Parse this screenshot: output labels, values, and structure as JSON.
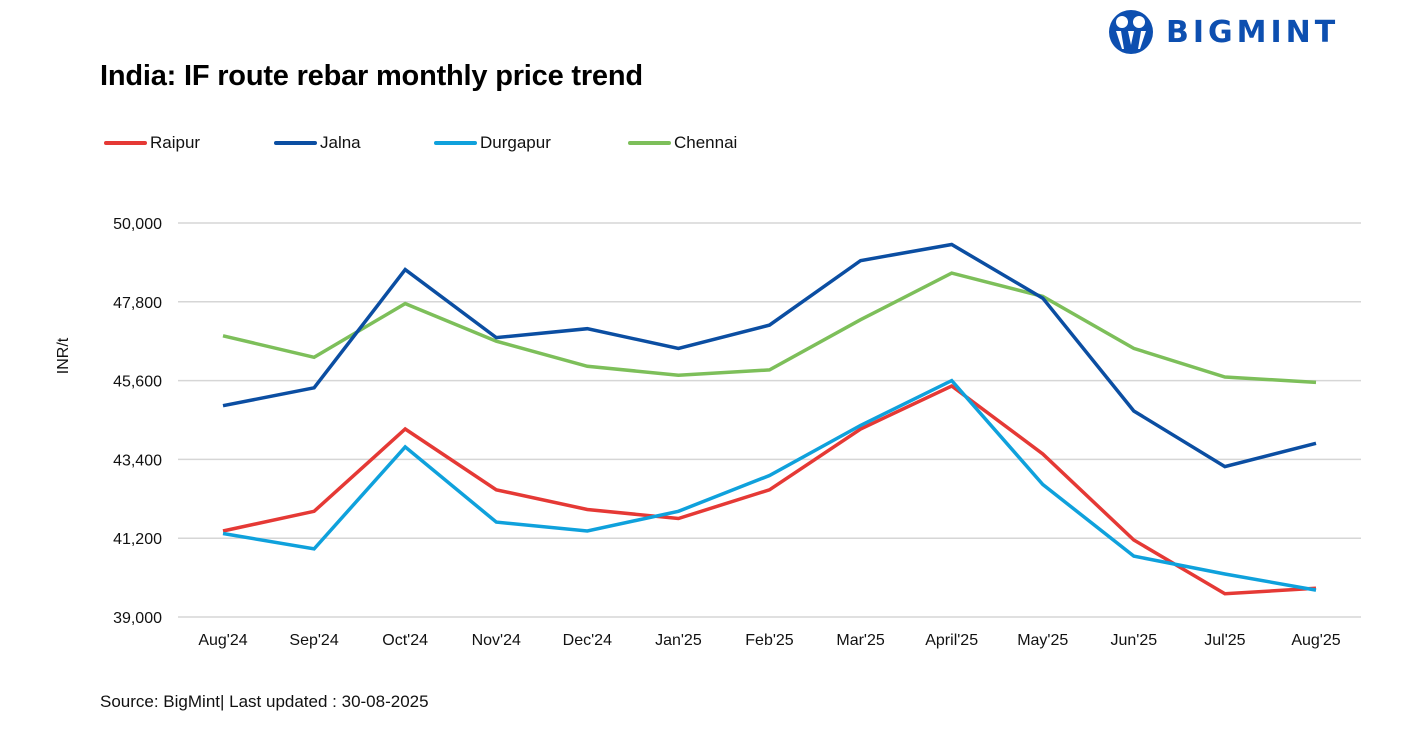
{
  "brand": {
    "name": "BIGMINT",
    "color": "#0d4fb0"
  },
  "source_text": "Source: BigMint| Last updated : 30-08-2025",
  "chart_data": {
    "type": "line",
    "title": "India: IF route rebar monthly price trend",
    "xlabel": "",
    "ylabel": "INR/t",
    "ylim": [
      39000,
      50000
    ],
    "yticks": [
      39000,
      41200,
      43400,
      45600,
      47800,
      50000
    ],
    "ytick_labels": [
      "39,000",
      "41,200",
      "43,400",
      "45,600",
      "47,800",
      "50,000"
    ],
    "grid": "horizontal",
    "legend_position": "top-left",
    "categories": [
      "Aug'24",
      "Sep'24",
      "Oct'24",
      "Nov'24",
      "Dec'24",
      "Jan'25",
      "Feb'25",
      "Mar'25",
      "April'25",
      "May'25",
      "Jun'25",
      "Jul'25",
      "Aug'25"
    ],
    "series": [
      {
        "name": "Raipur",
        "color": "#e53935",
        "values": [
          41400,
          41950,
          44250,
          42550,
          42000,
          41750,
          42550,
          44250,
          45450,
          43550,
          41150,
          39650,
          39800
        ]
      },
      {
        "name": "Jalna",
        "color": "#0b4ea2",
        "values": [
          44900,
          45400,
          48700,
          46800,
          47050,
          46500,
          47150,
          48950,
          49400,
          47900,
          44750,
          43200,
          43850
        ]
      },
      {
        "name": "Durgapur",
        "color": "#0fa1dc",
        "values": [
          41330,
          40900,
          43750,
          41650,
          41400,
          41950,
          42950,
          44350,
          45600,
          42700,
          40700,
          40200,
          39750
        ]
      },
      {
        "name": "Chennai",
        "color": "#7dbf5a",
        "values": [
          46850,
          46250,
          47750,
          46700,
          46000,
          45750,
          45900,
          47300,
          48600,
          47950,
          46500,
          45700,
          45550
        ]
      }
    ]
  }
}
